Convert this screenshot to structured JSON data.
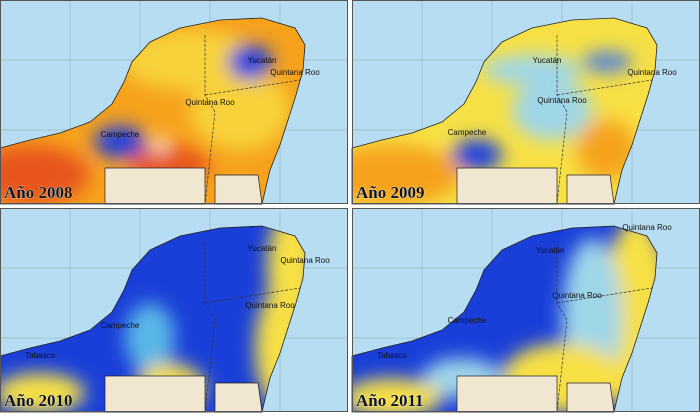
{
  "panels": [
    {
      "year_label": "Año 2008",
      "places": [
        {
          "label": "Yucatán"
        },
        {
          "label": "Quintana Roo"
        },
        {
          "label": "Quintana Roo"
        },
        {
          "label": "Campeche"
        }
      ]
    },
    {
      "year_label": "Año 2009",
      "places": [
        {
          "label": "Yucatán"
        },
        {
          "label": "Quintana Roo"
        },
        {
          "label": "Quintana Roo"
        },
        {
          "label": "Campeche"
        }
      ]
    },
    {
      "year_label": "Año 2010",
      "places": [
        {
          "label": "Yucatán"
        },
        {
          "label": "Quintana Roo"
        },
        {
          "label": "Quintana Roo"
        },
        {
          "label": "Campeche"
        },
        {
          "label": "Tabasco"
        }
      ]
    },
    {
      "year_label": "Año 2011",
      "places": [
        {
          "label": "Yucatán"
        },
        {
          "label": "Quintana Roo"
        },
        {
          "label": "Quintana Roo"
        },
        {
          "label": "Campeche"
        },
        {
          "label": "Tabasco"
        }
      ]
    }
  ]
}
